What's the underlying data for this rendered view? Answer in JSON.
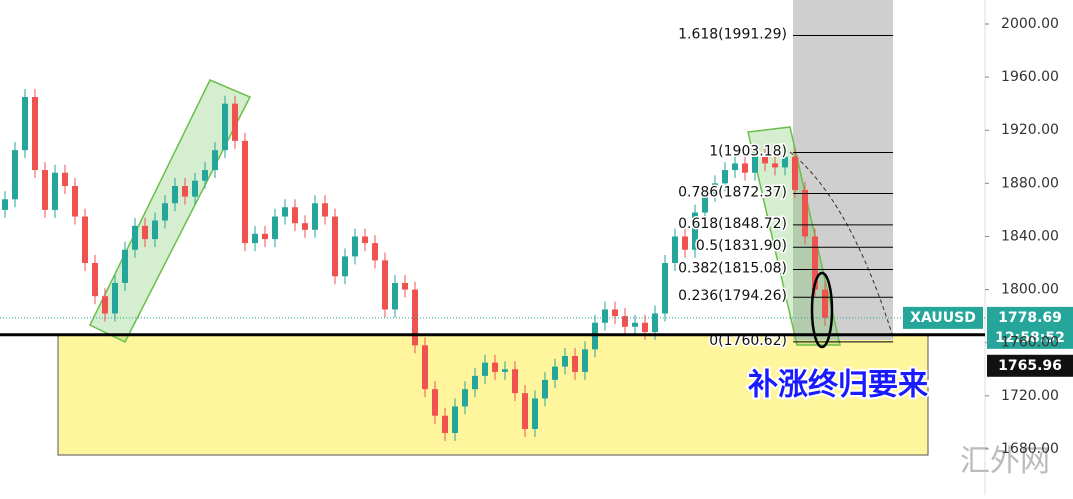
{
  "chart_data": {
    "type": "candlestick",
    "open": [
      1860,
      1868,
      1905,
      1945,
      1890,
      1860,
      1888,
      1878,
      1855,
      1820,
      1795,
      1782,
      1805,
      1830,
      1848,
      1838,
      1852,
      1865,
      1878,
      1870,
      1882,
      1890,
      1905,
      1940,
      1912,
      1835,
      1842,
      1838,
      1855,
      1862,
      1850,
      1845,
      1865,
      1855,
      1810,
      1825,
      1840,
      1835,
      1822,
      1785,
      1805,
      1800,
      1758,
      1725,
      1705,
      1692,
      1712,
      1725,
      1735,
      1745,
      1738,
      1740,
      1722,
      1695,
      1718,
      1732,
      1742,
      1750,
      1738,
      1755,
      1775,
      1785,
      1780,
      1772,
      1775,
      1768,
      1782,
      1820,
      1840,
      1830,
      1858,
      1872,
      1880,
      1890,
      1895,
      1888,
      1900,
      1895,
      1892,
      1900,
      1875,
      1840,
      1800
    ],
    "high": [
      1874,
      1911,
      1951,
      1951,
      1896,
      1894,
      1894,
      1884,
      1861,
      1826,
      1801,
      1811,
      1836,
      1854,
      1854,
      1858,
      1871,
      1884,
      1884,
      1888,
      1896,
      1911,
      1946,
      1946,
      1918,
      1848,
      1848,
      1861,
      1868,
      1868,
      1856,
      1871,
      1871,
      1861,
      1831,
      1846,
      1846,
      1841,
      1828,
      1811,
      1811,
      1806,
      1764,
      1731,
      1711,
      1718,
      1731,
      1741,
      1751,
      1751,
      1746,
      1746,
      1728,
      1724,
      1738,
      1748,
      1756,
      1756,
      1761,
      1781,
      1791,
      1791,
      1786,
      1781,
      1781,
      1788,
      1826,
      1846,
      1846,
      1864,
      1878,
      1886,
      1896,
      1901,
      1901,
      1906,
      1906,
      1901,
      1906,
      1906,
      1881,
      1846,
      1806
    ],
    "low": [
      1854,
      1862,
      1899,
      1884,
      1854,
      1854,
      1872,
      1849,
      1814,
      1789,
      1776,
      1776,
      1799,
      1824,
      1832,
      1832,
      1846,
      1859,
      1864,
      1864,
      1876,
      1884,
      1899,
      1906,
      1829,
      1829,
      1832,
      1832,
      1849,
      1844,
      1839,
      1839,
      1849,
      1804,
      1804,
      1819,
      1829,
      1816,
      1779,
      1779,
      1794,
      1752,
      1719,
      1699,
      1686,
      1686,
      1706,
      1719,
      1729,
      1732,
      1732,
      1716,
      1689,
      1689,
      1712,
      1726,
      1736,
      1732,
      1732,
      1749,
      1769,
      1774,
      1766,
      1766,
      1762,
      1762,
      1776,
      1814,
      1824,
      1824,
      1852,
      1866,
      1874,
      1884,
      1882,
      1882,
      1889,
      1886,
      1886,
      1869,
      1834,
      1794,
      1772.69
    ],
    "close": [
      1868,
      1905,
      1945,
      1890,
      1860,
      1888,
      1878,
      1855,
      1820,
      1795,
      1782,
      1805,
      1830,
      1848,
      1838,
      1852,
      1865,
      1878,
      1870,
      1882,
      1890,
      1905,
      1940,
      1912,
      1835,
      1842,
      1838,
      1855,
      1862,
      1850,
      1845,
      1865,
      1855,
      1810,
      1825,
      1840,
      1835,
      1822,
      1785,
      1805,
      1800,
      1758,
      1725,
      1705,
      1692,
      1712,
      1725,
      1735,
      1745,
      1738,
      1740,
      1722,
      1695,
      1718,
      1732,
      1742,
      1750,
      1738,
      1755,
      1775,
      1785,
      1780,
      1772,
      1775,
      1768,
      1782,
      1820,
      1840,
      1830,
      1858,
      1872,
      1880,
      1890,
      1895,
      1888,
      1900,
      1895,
      1892,
      1900,
      1875,
      1840,
      1800,
      1778.69
    ],
    "up_color": "#26a69a",
    "down_color": "#ef5350",
    "ylim": [
      1645.3,
      2018.07
    ],
    "yticks": [
      {
        "value": 1680,
        "label": "1680.00"
      },
      {
        "value": 1720,
        "label": "1720.00"
      },
      {
        "value": 1760,
        "label": "1760.00"
      },
      {
        "value": 1800,
        "label": "1800.00"
      },
      {
        "value": 1840,
        "label": "1840.00"
      },
      {
        "value": 1880,
        "label": "1880.00"
      },
      {
        "value": 1920,
        "label": "1920.00"
      },
      {
        "value": 1960,
        "label": "1960.00"
      },
      {
        "value": 2000,
        "label": "2000.00"
      }
    ],
    "fib_levels": [
      {
        "value": 1991.29,
        "label": "1.618(1991.29)"
      },
      {
        "value": 1903.18,
        "label": "1(1903.18)"
      },
      {
        "value": 1872.37,
        "label": "0.786(1872.37)"
      },
      {
        "value": 1848.72,
        "label": "0.618(1848.72)"
      },
      {
        "value": 1831.9,
        "label": "0.5(1831.90)"
      },
      {
        "value": 1815.08,
        "label": "0.382(1815.08)"
      },
      {
        "value": 1794.26,
        "label": "0.236(1794.26)"
      },
      {
        "value": 1760.62,
        "label": "0(1760.62)"
      }
    ],
    "last_price": {
      "symbol": "XAUUSD",
      "value": 1778.69,
      "countdown": "12:58:52"
    },
    "support": {
      "value": 1765.96
    },
    "annotation": "补涨终归要来",
    "watermark": "汇外网"
  }
}
